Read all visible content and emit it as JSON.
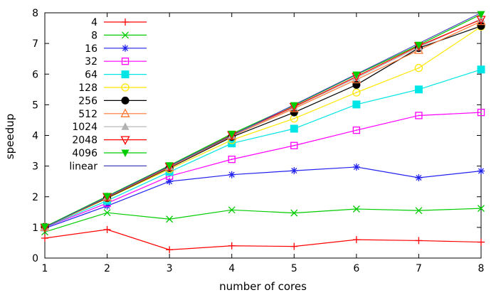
{
  "figure": {
    "background_color": "#ffffff",
    "axis_color": "#000000",
    "tick_font_size": 14,
    "legend_font_size": 14
  },
  "chart_data": {
    "type": "line",
    "title": "",
    "xlabel": "number of cores",
    "ylabel": "speedup",
    "x": [
      1,
      2,
      3,
      4,
      5,
      6,
      7,
      8
    ],
    "xlim": [
      1,
      8
    ],
    "ylim": [
      0,
      8
    ],
    "xticks": [
      1,
      2,
      3,
      4,
      5,
      6,
      7,
      8
    ],
    "yticks": [
      0,
      1,
      2,
      3,
      4,
      5,
      6,
      7,
      8
    ],
    "grid": false,
    "legend_position": "top-left-inside",
    "series": [
      {
        "name": "4",
        "color": "#ff0000",
        "marker": "plus",
        "values": [
          0.65,
          0.93,
          0.27,
          0.4,
          0.38,
          0.6,
          0.57,
          0.52
        ]
      },
      {
        "name": "8",
        "color": "#00cc00",
        "marker": "cross",
        "values": [
          0.85,
          1.48,
          1.27,
          1.57,
          1.47,
          1.6,
          1.55,
          1.62
        ]
      },
      {
        "name": "16",
        "color": "#2222ee",
        "marker": "asterisk",
        "values": [
          0.97,
          1.7,
          2.5,
          2.72,
          2.85,
          2.97,
          2.62,
          2.84
        ]
      },
      {
        "name": "32",
        "color": "#ff00ff",
        "marker": "square-open",
        "values": [
          1.0,
          1.79,
          2.67,
          3.22,
          3.67,
          4.17,
          4.65,
          4.75
        ]
      },
      {
        "name": "64",
        "color": "#00e5e5",
        "marker": "square-filled",
        "values": [
          1.0,
          1.87,
          2.81,
          3.74,
          4.22,
          5.01,
          5.5,
          6.15
        ]
      },
      {
        "name": "128",
        "color": "#ffe600",
        "marker": "circle-open",
        "values": [
          1.0,
          1.95,
          2.9,
          3.85,
          4.55,
          5.4,
          6.2,
          7.55
        ]
      },
      {
        "name": "256",
        "color": "#000000",
        "marker": "circle-filled",
        "values": [
          1.02,
          1.96,
          2.94,
          3.95,
          4.75,
          5.65,
          6.85,
          7.57
        ]
      },
      {
        "name": "512",
        "color": "#ff7733",
        "marker": "triangle-up-open",
        "values": [
          1.0,
          1.98,
          2.96,
          3.98,
          4.88,
          5.82,
          6.78,
          7.72
        ]
      },
      {
        "name": "1024",
        "color": "#b2b2b2",
        "marker": "triangle-up-filled",
        "values": [
          1.0,
          2.0,
          2.98,
          4.0,
          4.92,
          5.88,
          6.88,
          7.8
        ]
      },
      {
        "name": "2048",
        "color": "#ff0000",
        "marker": "triangle-down-open",
        "values": [
          1.0,
          2.0,
          2.99,
          4.02,
          4.94,
          5.92,
          6.92,
          7.78
        ]
      },
      {
        "name": "4096",
        "color": "#00cc00",
        "marker": "triangle-down-filled",
        "values": [
          1.02,
          2.02,
          3.02,
          4.05,
          4.98,
          5.98,
          6.95,
          7.95
        ]
      },
      {
        "name": "linear",
        "color": "#4444bb",
        "marker": "none",
        "values": [
          1,
          2,
          3,
          4,
          5,
          6,
          7,
          8
        ]
      }
    ]
  }
}
